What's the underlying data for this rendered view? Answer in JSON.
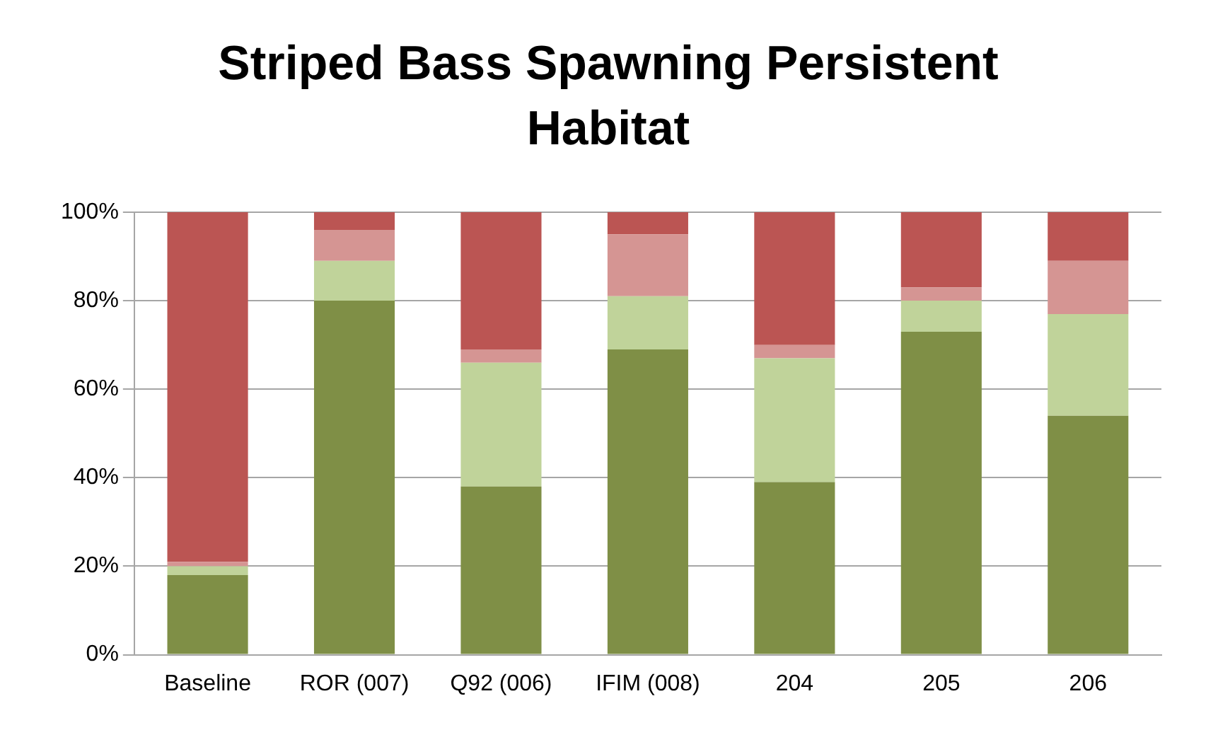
{
  "chart_data": {
    "type": "bar",
    "stacked": true,
    "title": "Striped Bass Spawning Persistent Habitat",
    "categories": [
      "Baseline",
      "ROR (007)",
      "Q92 (006)",
      "IFIM (008)",
      "204",
      "205",
      "206"
    ],
    "series": [
      {
        "color": "#7f8f46",
        "values": [
          18,
          80,
          38,
          69,
          39,
          73,
          54
        ]
      },
      {
        "color": "#c0d39a",
        "values": [
          2,
          9,
          28,
          12,
          28,
          7,
          23
        ]
      },
      {
        "color": "#d59593",
        "values": [
          1,
          7,
          3,
          14,
          3,
          3,
          12
        ]
      },
      {
        "color": "#bb5553",
        "values": [
          79,
          4,
          31,
          5,
          30,
          17,
          11
        ]
      }
    ],
    "ylim": [
      0,
      100
    ],
    "yticks": [
      {
        "value": 0,
        "label": "0%"
      },
      {
        "value": 20,
        "label": "20%"
      },
      {
        "value": 40,
        "label": "40%"
      },
      {
        "value": 60,
        "label": "60%"
      },
      {
        "value": 80,
        "label": "80%"
      },
      {
        "value": 100,
        "label": "100%"
      }
    ],
    "grid": "y",
    "legend": false
  }
}
